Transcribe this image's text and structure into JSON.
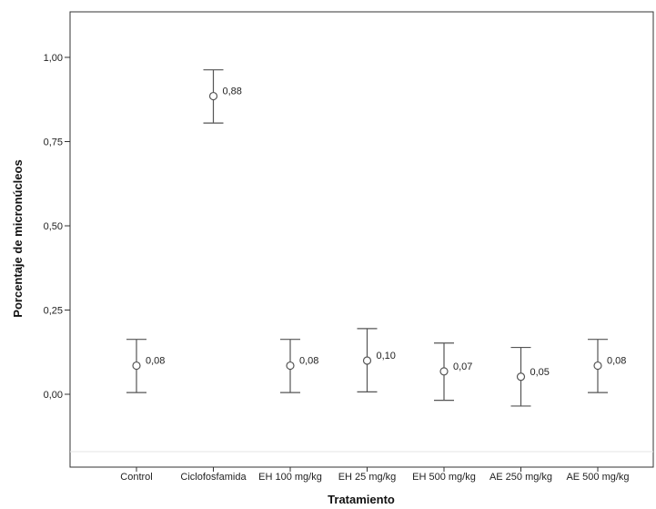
{
  "chart_data": {
    "type": "scatter",
    "title": "",
    "xlabel": "Tratamiento",
    "ylabel": "Porcentaje de micronúcleos",
    "ylim": [
      -0.18,
      1.13
    ],
    "yticks": [
      0.0,
      0.25,
      0.5,
      0.75,
      1.0
    ],
    "ytick_labels": [
      "0,00",
      "0,25",
      "0,50",
      "0,75",
      "1,00"
    ],
    "categories": [
      "Control",
      "Ciclofosfamida",
      "EH 100 mg/kg",
      "EH 25 mg/kg",
      "EH 500 mg/kg",
      "AE 250 mg/kg",
      "AE 500 mg/kg"
    ],
    "values": [
      0.085,
      0.885,
      0.085,
      0.1,
      0.068,
      0.052,
      0.085
    ],
    "error_low": [
      0.005,
      0.805,
      0.005,
      0.007,
      -0.018,
      -0.035,
      0.005
    ],
    "error_high": [
      0.163,
      0.963,
      0.163,
      0.195,
      0.152,
      0.139,
      0.163
    ],
    "data_labels": [
      "0,08",
      "0,88",
      "0,08",
      "0,10",
      "0,07",
      "0,05",
      "0,08"
    ],
    "grid": false,
    "legend": "none",
    "marker_color": "#555555",
    "errorbar_color": "#555555"
  }
}
